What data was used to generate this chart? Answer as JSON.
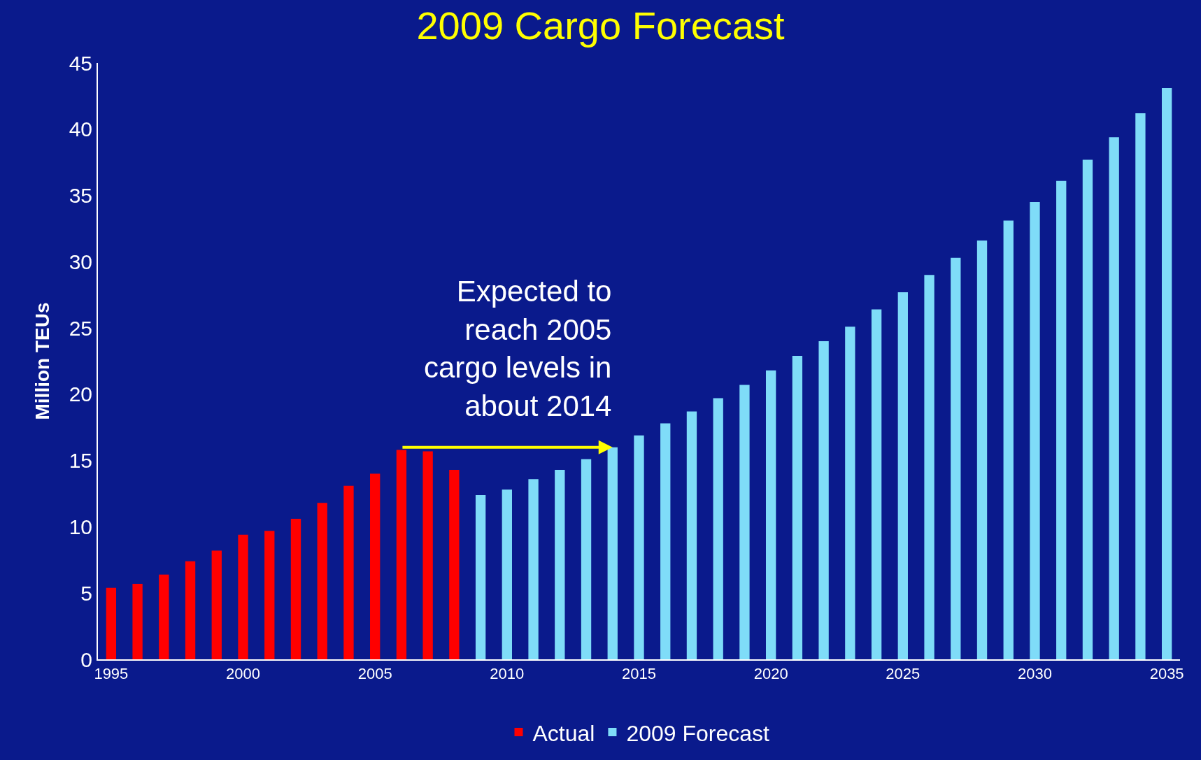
{
  "chart_data": {
    "type": "bar",
    "title": "2009 Cargo Forecast",
    "ylabel": "Million TEUs",
    "series": [
      {
        "name": "Actual",
        "color": "#ff0000",
        "x": [
          1995,
          1996,
          1997,
          1998,
          1999,
          2000,
          2001,
          2002,
          2003,
          2004,
          2005,
          2006,
          2007,
          2008
        ],
        "values": [
          5.4,
          5.7,
          6.4,
          7.4,
          8.2,
          9.4,
          9.7,
          10.6,
          11.8,
          13.1,
          14.0,
          15.8,
          15.7,
          14.3
        ]
      },
      {
        "name": "2009 Forecast",
        "color": "#7fdcf8",
        "x": [
          2009,
          2010,
          2011,
          2012,
          2013,
          2014,
          2015,
          2016,
          2017,
          2018,
          2019,
          2020,
          2021,
          2022,
          2023,
          2024,
          2025,
          2026,
          2027,
          2028,
          2029,
          2030,
          2031,
          2032,
          2033,
          2034,
          2035
        ],
        "values": [
          12.4,
          12.8,
          13.6,
          14.3,
          15.1,
          16.0,
          16.9,
          17.8,
          18.7,
          19.7,
          20.7,
          21.8,
          22.9,
          24.0,
          25.1,
          26.4,
          27.7,
          29.0,
          30.3,
          31.6,
          33.1,
          34.5,
          36.1,
          37.7,
          39.4,
          41.2,
          43.1
        ]
      }
    ],
    "annotations": [
      {
        "text": "Expected to reach 2005 cargo levels in about 2014",
        "x": 2014,
        "y": 16
      }
    ],
    "xlim": [
      1994.5,
      2035.5
    ],
    "xticks": [
      1995,
      2000,
      2005,
      2010,
      2015,
      2020,
      2025,
      2030,
      2035
    ],
    "ylim": [
      0,
      45
    ],
    "yticks": [
      0,
      5,
      10,
      15,
      20,
      25,
      30,
      35,
      40,
      45
    ],
    "grid": false,
    "legend": "bottom"
  }
}
